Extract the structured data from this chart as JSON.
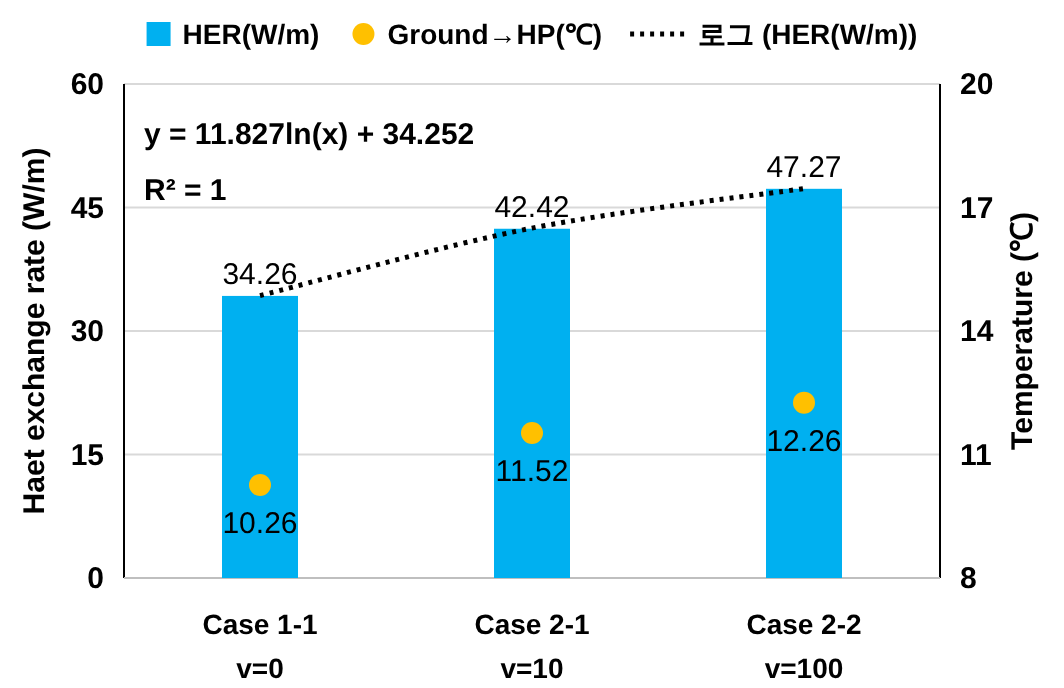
{
  "chart_data": {
    "type": "bar",
    "categories": [
      "Case 1-1\nv=0",
      "Case 2-1\nv=10",
      "Case 2-2\nv=100"
    ],
    "series": [
      {
        "name": "HER(W/m)",
        "color": "#00b0f0",
        "values": [
          34.26,
          42.42,
          47.27
        ],
        "value_labels": [
          "34.26",
          "42.42",
          "47.27"
        ]
      },
      {
        "name": "Ground→HP(℃)",
        "type": "scatter",
        "axis": "y2",
        "color": "#ffc000",
        "marker": "circle",
        "values": [
          10.26,
          11.52,
          12.26
        ],
        "value_labels": [
          "10.26",
          "11.52",
          "12.26"
        ]
      },
      {
        "name": "로그 (HER(W/m))",
        "type": "line",
        "color": "#000000",
        "marker": "none",
        "line_style": "dotted",
        "values": [
          34.3,
          42.5,
          47.3
        ]
      }
    ],
    "ylabel": "Haet exchange rate (W/m)",
    "y2label": "Temperature (℃)",
    "ylim": [
      0,
      60
    ],
    "yticks": [
      0,
      15,
      30,
      45,
      60
    ],
    "y2lim": [
      8,
      20
    ],
    "y2ticks": [
      8,
      11,
      14,
      17,
      20
    ],
    "annotations": [
      "y = 11.827ln(x) + 34.252",
      "R² = 1"
    ],
    "legend": "top",
    "grid": "y"
  }
}
